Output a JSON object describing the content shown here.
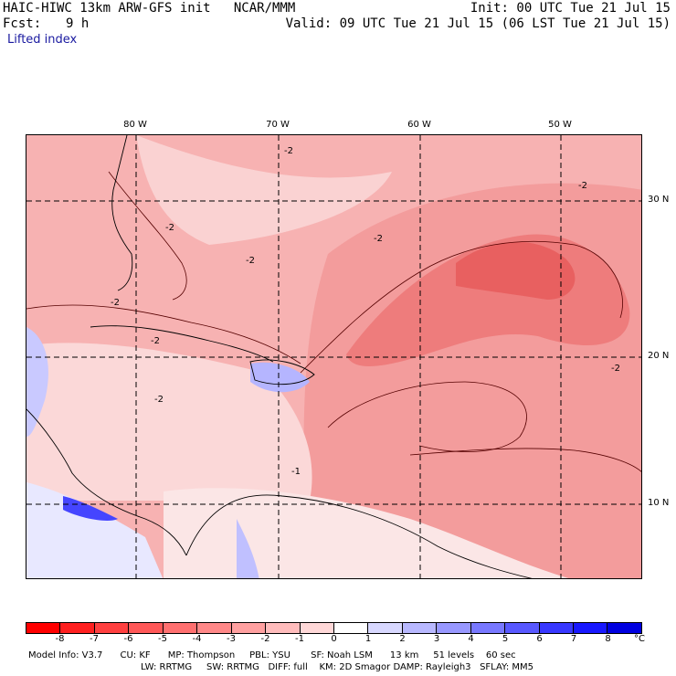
{
  "header": {
    "title_left": "HAIC-HIWC 13km ARW-GFS init   NCAR/MMM",
    "init": "Init: 00 UTC Tue 21 Jul 15",
    "fcst_label": "Fcst:",
    "fcst_value": "9 h",
    "valid": "Valid: 09 UTC Tue 21 Jul 15 (06 LST Tue 21 Jul 15)",
    "field": "Lifted index"
  },
  "map": {
    "longitude_labels": [
      "80 W",
      "70 W",
      "60 W",
      "50 W"
    ],
    "latitude_labels": [
      "30 N",
      "20 N",
      "10 N"
    ],
    "contour_labels": [
      "-2",
      "-2",
      "-2",
      "-2",
      "-2",
      "-2",
      "-2",
      "-2",
      "-2",
      "-1"
    ]
  },
  "colorbar": {
    "ticks": [
      "-8",
      "-7",
      "-6",
      "-5",
      "-4",
      "-3",
      "-2",
      "-1",
      "0",
      "1",
      "2",
      "3",
      "4",
      "5",
      "6",
      "7",
      "8"
    ],
    "unit": "°C",
    "colors": [
      "#ff0000",
      "#ff2020",
      "#ff4040",
      "#ff5858",
      "#ff7070",
      "#ff8888",
      "#ffa0a0",
      "#ffbcbc",
      "#ffd8d8",
      "#ffffff",
      "#d8d8ff",
      "#b8b8ff",
      "#9898ff",
      "#7878ff",
      "#5858ff",
      "#3838ff",
      "#1818ff",
      "#0000e0"
    ]
  },
  "model_info": {
    "line1": "Model Info: V3.7      CU: KF      MP: Thompson     PBL: YSU       SF: Noah LSM      13 km     51 levels    60 sec",
    "line2": "LW: RRTMG     SW: RRTMG   DIFF: full    KM: 2D Smagor DAMP: Rayleigh3   SFLAY: MM5"
  }
}
